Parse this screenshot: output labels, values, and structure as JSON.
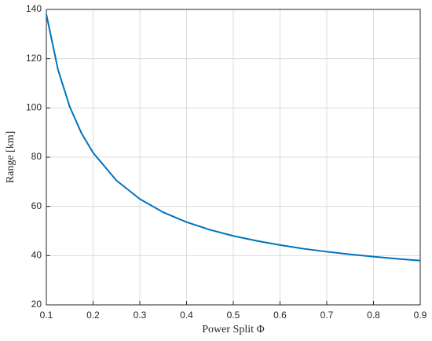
{
  "chart_data": {
    "type": "line",
    "xlabel": "Power Split Φ",
    "ylabel": "Range [km]",
    "x": [
      0.1,
      0.125,
      0.15,
      0.175,
      0.2,
      0.25,
      0.3,
      0.35,
      0.4,
      0.45,
      0.5,
      0.55,
      0.6,
      0.65,
      0.7,
      0.75,
      0.8,
      0.85,
      0.9
    ],
    "series": [
      {
        "color": "#0072bd",
        "values": [
          138,
          115.5,
          100.5,
          89.8,
          81.8,
          70.5,
          63,
          57.6,
          53.6,
          50.5,
          48,
          46,
          44.3,
          42.8,
          41.6,
          40.5,
          39.6,
          38.7,
          38
        ]
      }
    ],
    "xlim": [
      0.1,
      0.9
    ],
    "xticks": [
      0.1,
      0.2,
      0.3,
      0.4,
      0.5,
      0.6,
      0.7,
      0.8,
      0.9
    ],
    "ylim": [
      20,
      140
    ],
    "yticks": [
      20,
      40,
      60,
      80,
      100,
      120,
      140
    ],
    "grid": true
  }
}
